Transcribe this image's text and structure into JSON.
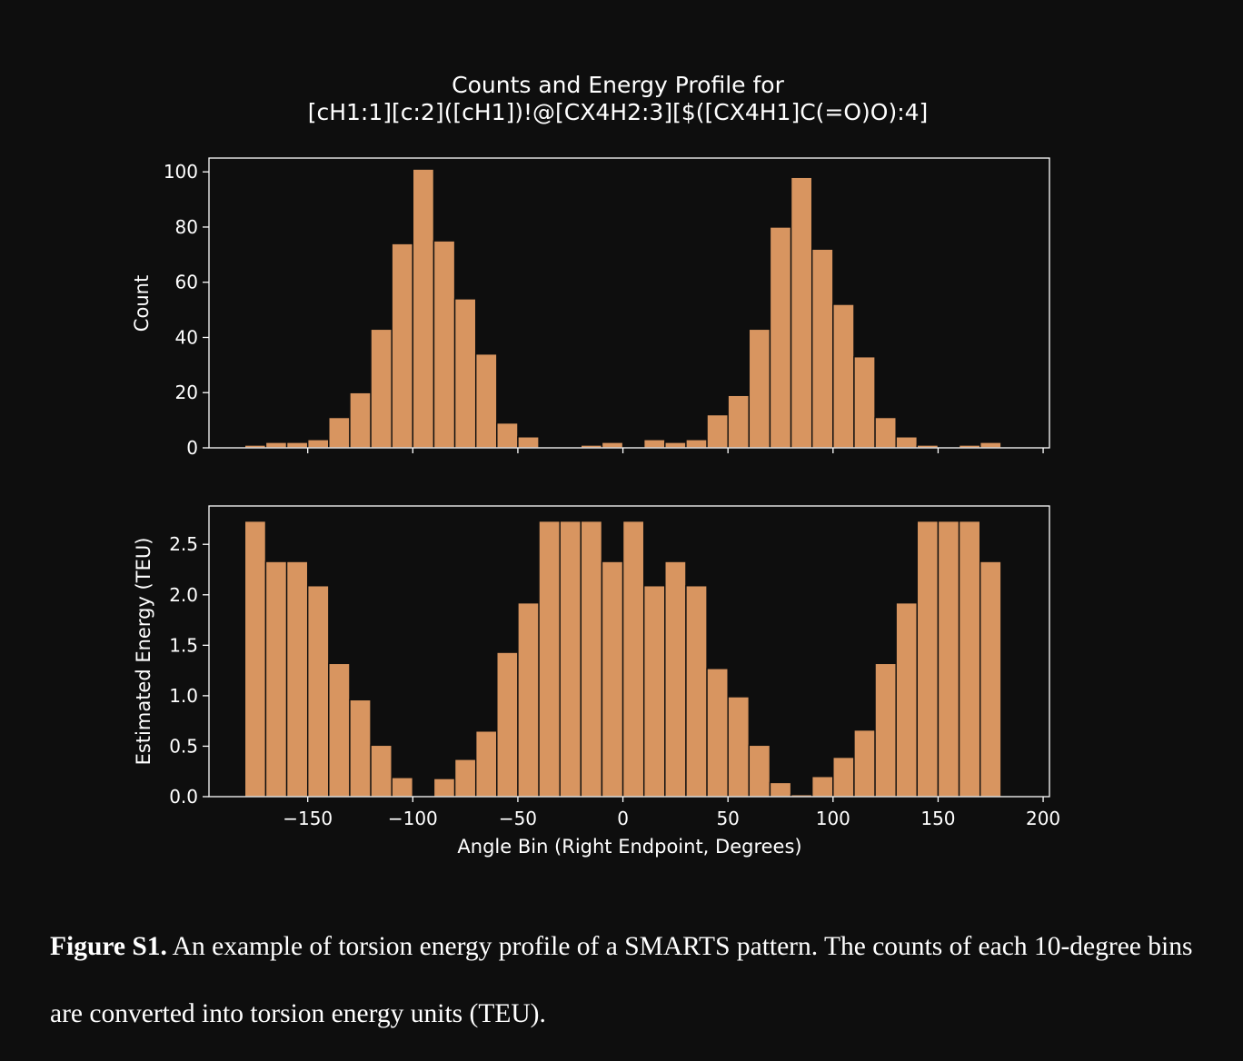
{
  "figure": {
    "title_line1": "Counts and Energy Profile for",
    "title_line2": "[cH1:1][c:2]([cH1])!@[CX4H2:3][$([CX4H1]C(=O)O):4]"
  },
  "colors": {
    "bar": "#d89560",
    "bar_edge": "#0e0e0e",
    "axis": "#ffffff",
    "background": "#0e0e0e"
  },
  "chart_data": [
    {
      "type": "bar",
      "ylabel": "Count",
      "ylim": [
        0,
        105
      ],
      "yticks": [
        0,
        20,
        40,
        60,
        80,
        100
      ],
      "xlim": [
        -197,
        203
      ],
      "bin_width": 10,
      "x": [
        -170,
        -160,
        -150,
        -140,
        -130,
        -120,
        -110,
        -100,
        -90,
        -80,
        -70,
        -60,
        -50,
        -40,
        -30,
        -20,
        -10,
        0,
        10,
        20,
        30,
        40,
        50,
        60,
        70,
        80,
        90,
        100,
        110,
        120,
        130,
        140,
        150,
        160,
        170,
        180
      ],
      "values": [
        1,
        2,
        2,
        3,
        11,
        20,
        43,
        74,
        101,
        75,
        54,
        34,
        9,
        4,
        0,
        0,
        1,
        2,
        0,
        3,
        2,
        3,
        12,
        19,
        43,
        80,
        98,
        72,
        52,
        33,
        11,
        4,
        1,
        0,
        1,
        2
      ]
    },
    {
      "type": "bar",
      "ylabel": "Estimated Energy (TEU)",
      "xlabel": "Angle Bin (Right Endpoint, Degrees)",
      "ylim": [
        0,
        2.88
      ],
      "yticks": [
        "0.0",
        "0.5",
        "1.0",
        "1.5",
        "2.0",
        "2.5"
      ],
      "xlim": [
        -197,
        203
      ],
      "xticks": [
        "−150",
        "−100",
        "−50",
        "0",
        "50",
        "100",
        "150",
        "200"
      ],
      "bin_width": 10,
      "x": [
        -170,
        -160,
        -150,
        -140,
        -130,
        -120,
        -110,
        -100,
        -90,
        -80,
        -70,
        -60,
        -50,
        -40,
        -30,
        -20,
        -10,
        0,
        10,
        20,
        30,
        40,
        50,
        60,
        70,
        80,
        90,
        100,
        110,
        120,
        130,
        140,
        150,
        160,
        170,
        180
      ],
      "values": [
        2.73,
        2.33,
        2.33,
        2.09,
        1.32,
        0.96,
        0.51,
        0.19,
        0,
        0.18,
        0.37,
        0.65,
        1.43,
        1.92,
        2.73,
        2.73,
        2.73,
        2.33,
        2.73,
        2.09,
        2.33,
        2.09,
        1.27,
        0.99,
        0.51,
        0.14,
        0.02,
        0.2,
        0.39,
        0.66,
        1.32,
        1.92,
        2.73,
        2.73,
        2.73,
        2.33
      ]
    }
  ],
  "caption": {
    "label": "Figure S1.",
    "text": " An example of torsion energy profile of a SMARTS pattern. The counts of each 10-degree bins are converted into torsion energy units (TEU)."
  }
}
